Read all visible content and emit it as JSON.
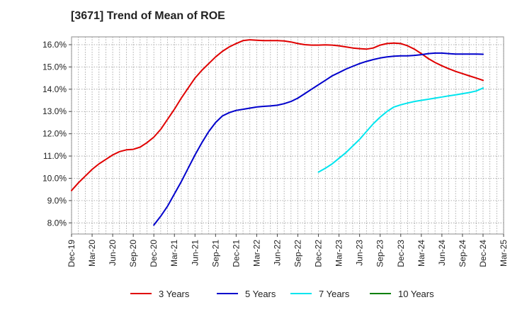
{
  "chart_data": {
    "type": "line",
    "title": "[3671]  Trend of Mean of ROE",
    "xlabel": "",
    "ylabel": "",
    "y_unit": "%",
    "ylim": [
      7.5,
      16.35
    ],
    "y_ticks": [
      8.0,
      9.0,
      10.0,
      11.0,
      12.0,
      13.0,
      14.0,
      15.0,
      16.0
    ],
    "y_tick_labels": [
      "8.0%",
      "9.0%",
      "10.0%",
      "11.0%",
      "12.0%",
      "13.0%",
      "14.0%",
      "15.0%",
      "16.0%"
    ],
    "x_tick_labels": [
      "Dec-19",
      "Mar-20",
      "Jun-20",
      "Sep-20",
      "Dec-20",
      "Mar-21",
      "Jun-21",
      "Sep-21",
      "Dec-21",
      "Mar-22",
      "Jun-22",
      "Sep-22",
      "Dec-22",
      "Mar-23",
      "Jun-23",
      "Sep-23",
      "Dec-23",
      "Mar-24",
      "Jun-24",
      "Sep-24",
      "Dec-24",
      "Mar-25"
    ],
    "grid": true,
    "legend_position": "bottom",
    "series": [
      {
        "name": "3 Years",
        "color": "#e00000",
        "x": [
          "Dec-19",
          "Jan-20",
          "Feb-20",
          "Mar-20",
          "Apr-20",
          "May-20",
          "Jun-20",
          "Jul-20",
          "Aug-20",
          "Sep-20",
          "Oct-20",
          "Nov-20",
          "Dec-20",
          "Jan-21",
          "Feb-21",
          "Mar-21",
          "Apr-21",
          "May-21",
          "Jun-21",
          "Jul-21",
          "Aug-21",
          "Sep-21",
          "Oct-21",
          "Nov-21",
          "Dec-21",
          "Jan-22",
          "Feb-22",
          "Mar-22",
          "Apr-22",
          "May-22",
          "Jun-22",
          "Jul-22",
          "Aug-22",
          "Sep-22",
          "Oct-22",
          "Nov-22",
          "Dec-22",
          "Jan-23",
          "Feb-23",
          "Mar-23",
          "Apr-23",
          "May-23",
          "Jun-23",
          "Jul-23",
          "Aug-23",
          "Sep-23",
          "Oct-23",
          "Nov-23",
          "Dec-23",
          "Jan-24",
          "Feb-24",
          "Mar-24",
          "Apr-24",
          "May-24",
          "Jun-24",
          "Jul-24",
          "Aug-24",
          "Sep-24",
          "Oct-24",
          "Nov-24",
          "Dec-24"
        ],
        "values": [
          9.45,
          9.8,
          10.1,
          10.4,
          10.65,
          10.85,
          11.05,
          11.2,
          11.28,
          11.3,
          11.4,
          11.6,
          11.85,
          12.2,
          12.65,
          13.1,
          13.6,
          14.05,
          14.5,
          14.85,
          15.15,
          15.45,
          15.7,
          15.9,
          16.05,
          16.18,
          16.22,
          16.2,
          16.18,
          16.18,
          16.18,
          16.17,
          16.12,
          16.05,
          16.0,
          15.98,
          15.98,
          15.99,
          15.98,
          15.95,
          15.9,
          15.85,
          15.82,
          15.8,
          15.85,
          15.98,
          16.05,
          16.07,
          16.05,
          15.95,
          15.8,
          15.6,
          15.38,
          15.2,
          15.05,
          14.92,
          14.8,
          14.7,
          14.6,
          14.5,
          14.4
        ]
      },
      {
        "name": "5 Years",
        "color": "#0000cc",
        "x": [
          "Dec-20",
          "Jan-21",
          "Feb-21",
          "Mar-21",
          "Apr-21",
          "May-21",
          "Jun-21",
          "Jul-21",
          "Aug-21",
          "Sep-21",
          "Oct-21",
          "Nov-21",
          "Dec-21",
          "Jan-22",
          "Feb-22",
          "Mar-22",
          "Apr-22",
          "May-22",
          "Jun-22",
          "Jul-22",
          "Aug-22",
          "Sep-22",
          "Oct-22",
          "Nov-22",
          "Dec-22",
          "Jan-23",
          "Feb-23",
          "Mar-23",
          "Apr-23",
          "May-23",
          "Jun-23",
          "Jul-23",
          "Aug-23",
          "Sep-23",
          "Oct-23",
          "Nov-23",
          "Dec-23",
          "Jan-24",
          "Feb-24",
          "Mar-24",
          "Apr-24",
          "May-24",
          "Jun-24",
          "Jul-24",
          "Aug-24",
          "Sep-24",
          "Oct-24",
          "Nov-24",
          "Dec-24"
        ],
        "values": [
          7.9,
          8.3,
          8.75,
          9.3,
          9.85,
          10.45,
          11.05,
          11.6,
          12.1,
          12.5,
          12.8,
          12.95,
          13.05,
          13.1,
          13.15,
          13.2,
          13.23,
          13.25,
          13.28,
          13.35,
          13.45,
          13.6,
          13.8,
          14.0,
          14.2,
          14.4,
          14.6,
          14.75,
          14.9,
          15.03,
          15.15,
          15.25,
          15.33,
          15.4,
          15.45,
          15.48,
          15.5,
          15.5,
          15.52,
          15.55,
          15.6,
          15.62,
          15.62,
          15.6,
          15.58,
          15.58,
          15.58,
          15.58,
          15.57
        ]
      },
      {
        "name": "7 Years",
        "color": "#00e5ee",
        "x": [
          "Dec-22",
          "Jan-23",
          "Feb-23",
          "Mar-23",
          "Apr-23",
          "May-23",
          "Jun-23",
          "Jul-23",
          "Aug-23",
          "Sep-23",
          "Oct-23",
          "Nov-23",
          "Dec-23",
          "Jan-24",
          "Feb-24",
          "Mar-24",
          "Apr-24",
          "May-24",
          "Jun-24",
          "Jul-24",
          "Aug-24",
          "Sep-24",
          "Oct-24",
          "Nov-24",
          "Dec-24"
        ],
        "values": [
          10.28,
          10.45,
          10.65,
          10.9,
          11.15,
          11.45,
          11.75,
          12.1,
          12.45,
          12.75,
          13.0,
          13.2,
          13.3,
          13.38,
          13.45,
          13.5,
          13.55,
          13.6,
          13.65,
          13.7,
          13.75,
          13.8,
          13.85,
          13.92,
          14.05
        ]
      },
      {
        "name": "10 Years",
        "color": "#008000",
        "x": [],
        "values": []
      }
    ]
  }
}
